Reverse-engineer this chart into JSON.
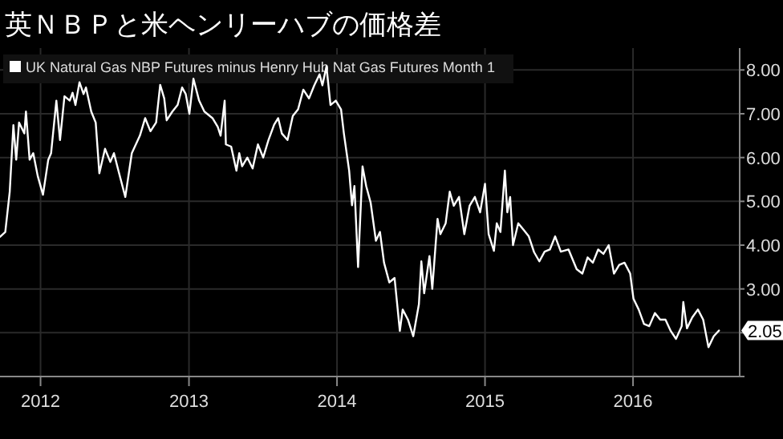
{
  "chart_data": {
    "type": "line",
    "title": "英ＮＢＰと米ヘンリーハブの価格差",
    "legend": "top left",
    "grid": true,
    "marker": "none",
    "line_style": "solid",
    "xlim": [
      "2011-09-23",
      "2016-09-20"
    ],
    "xticks": [
      {
        "value": "2012-01-01",
        "label": "2012"
      },
      {
        "value": "2013-01-01",
        "label": "2013"
      },
      {
        "value": "2014-01-01",
        "label": "2014"
      },
      {
        "value": "2015-01-01",
        "label": "2015"
      },
      {
        "value": "2016-01-01",
        "label": "2016"
      }
    ],
    "ylim": [
      1,
      8.5
    ],
    "yticks": [
      {
        "value": 1,
        "label": null
      },
      {
        "value": 2,
        "label": null
      },
      {
        "value": 3,
        "label": "3.00"
      },
      {
        "value": 4,
        "label": "4.00"
      },
      {
        "value": 5,
        "label": "5.00"
      },
      {
        "value": 6,
        "label": "6.00"
      },
      {
        "value": 7,
        "label": "7.00"
      },
      {
        "value": 8,
        "label": "8.00"
      }
    ],
    "annotations": [
      {
        "text": "2.05",
        "x": "2016-07-31",
        "y": 2.05
      }
    ],
    "series": [
      {
        "name": "UK Natural Gas NBP Futures minus Henry Hub Nat Gas Futures Month 1",
        "color": "#ffffff",
        "x": [
          "2011-09-23",
          "2011-10-06",
          "2011-10-17",
          "2011-10-26",
          "2011-11-02",
          "2011-11-09",
          "2011-11-22",
          "2011-11-26",
          "2011-12-05",
          "2011-12-14",
          "2011-12-25",
          "2012-01-07",
          "2012-01-20",
          "2012-01-27",
          "2012-02-09",
          "2012-02-18",
          "2012-02-29",
          "2012-03-13",
          "2012-03-20",
          "2012-03-27",
          "2012-04-06",
          "2012-04-16",
          "2012-04-22",
          "2012-05-05",
          "2012-05-16",
          "2012-05-25",
          "2012-06-08",
          "2012-06-21",
          "2012-06-30",
          "2012-07-11",
          "2012-07-28",
          "2012-08-13",
          "2012-09-02",
          "2012-09-15",
          "2012-09-28",
          "2012-10-12",
          "2012-10-22",
          "2012-11-01",
          "2012-11-07",
          "2012-11-21",
          "2012-12-04",
          "2012-12-15",
          "2012-12-24",
          "2013-01-02",
          "2013-01-12",
          "2013-01-26",
          "2013-02-08",
          "2013-02-28",
          "2013-03-13",
          "2013-03-20",
          "2013-03-30",
          "2013-04-02",
          "2013-04-15",
          "2013-04-28",
          "2013-05-05",
          "2013-05-12",
          "2013-05-25",
          "2013-06-07",
          "2013-06-20",
          "2013-07-03",
          "2013-07-16",
          "2013-07-30",
          "2013-08-09",
          "2013-08-18",
          "2013-09-01",
          "2013-09-14",
          "2013-09-27",
          "2013-10-10",
          "2013-10-24",
          "2013-11-06",
          "2013-11-19",
          "2013-11-26",
          "2013-12-06",
          "2013-12-16",
          "2013-12-29",
          "2014-01-11",
          "2014-01-18",
          "2014-01-31",
          "2014-02-07",
          "2014-02-13",
          "2014-02-22",
          "2014-03-05",
          "2014-03-14",
          "2014-03-25",
          "2014-04-07",
          "2014-04-17",
          "2014-04-27",
          "2014-05-10",
          "2014-05-23",
          "2014-06-05",
          "2014-06-12",
          "2014-06-25",
          "2014-07-08",
          "2014-07-22",
          "2014-07-28",
          "2014-08-04",
          "2014-08-17",
          "2014-08-24",
          "2014-09-06",
          "2014-09-13",
          "2014-09-26",
          "2014-10-06",
          "2014-10-16",
          "2014-10-29",
          "2014-11-11",
          "2014-11-24",
          "2014-12-07",
          "2014-12-20",
          "2015-01-01",
          "2015-01-10",
          "2015-01-23",
          "2015-01-30",
          "2015-02-08",
          "2015-02-19",
          "2015-02-25",
          "2015-03-04",
          "2015-03-11",
          "2015-03-24",
          "2015-04-06",
          "2015-04-19",
          "2015-05-02",
          "2015-05-15",
          "2015-05-28",
          "2015-06-10",
          "2015-06-23",
          "2015-07-07",
          "2015-07-26",
          "2015-08-15",
          "2015-08-29",
          "2015-09-11",
          "2015-09-24",
          "2015-10-07",
          "2015-10-20",
          "2015-11-02",
          "2015-11-15",
          "2015-11-28",
          "2015-12-11",
          "2015-12-25",
          "2016-01-02",
          "2016-01-15",
          "2016-01-28",
          "2016-02-10",
          "2016-02-24",
          "2016-03-08",
          "2016-03-21",
          "2016-04-03",
          "2016-04-16",
          "2016-04-30",
          "2016-05-04",
          "2016-05-13",
          "2016-05-26",
          "2016-06-09",
          "2016-06-22",
          "2016-07-05",
          "2016-07-18",
          "2016-07-31"
        ],
        "values": [
          4.19,
          4.3,
          5.22,
          6.74,
          5.95,
          6.8,
          6.55,
          7.05,
          5.95,
          6.1,
          5.58,
          5.15,
          5.95,
          6.1,
          7.3,
          6.4,
          7.4,
          7.3,
          7.48,
          7.2,
          7.72,
          7.45,
          7.6,
          7.05,
          6.8,
          5.64,
          6.2,
          5.9,
          6.1,
          5.7,
          5.1,
          6.1,
          6.5,
          6.9,
          6.6,
          6.8,
          7.66,
          7.35,
          6.85,
          7.05,
          7.2,
          7.6,
          7.45,
          7.0,
          7.8,
          7.3,
          7.05,
          6.9,
          6.7,
          6.5,
          7.3,
          6.3,
          6.25,
          5.7,
          6.1,
          5.8,
          6.0,
          5.75,
          6.3,
          6.0,
          6.4,
          6.75,
          6.9,
          6.55,
          6.4,
          6.95,
          7.1,
          7.55,
          7.35,
          7.65,
          7.9,
          7.65,
          8.08,
          7.2,
          7.3,
          7.1,
          6.55,
          5.7,
          4.91,
          5.35,
          3.5,
          5.8,
          5.35,
          4.97,
          4.1,
          4.3,
          3.6,
          3.15,
          3.25,
          2.04,
          2.53,
          2.3,
          1.92,
          2.65,
          3.63,
          2.9,
          3.75,
          3.0,
          4.6,
          4.25,
          4.5,
          5.22,
          4.9,
          5.1,
          4.25,
          4.9,
          5.1,
          4.75,
          5.4,
          4.25,
          3.87,
          4.5,
          4.3,
          5.7,
          4.75,
          5.1,
          4.0,
          4.5,
          4.35,
          4.2,
          3.84,
          3.63,
          3.85,
          3.9,
          4.2,
          3.85,
          3.9,
          3.45,
          3.35,
          3.72,
          3.6,
          3.9,
          3.8,
          4.0,
          3.35,
          3.55,
          3.6,
          3.35,
          2.78,
          2.53,
          2.2,
          2.15,
          2.45,
          2.3,
          2.3,
          2.04,
          1.86,
          2.15,
          2.7,
          2.1,
          2.35,
          2.53,
          2.3,
          1.67,
          1.92,
          2.05
        ]
      }
    ]
  }
}
